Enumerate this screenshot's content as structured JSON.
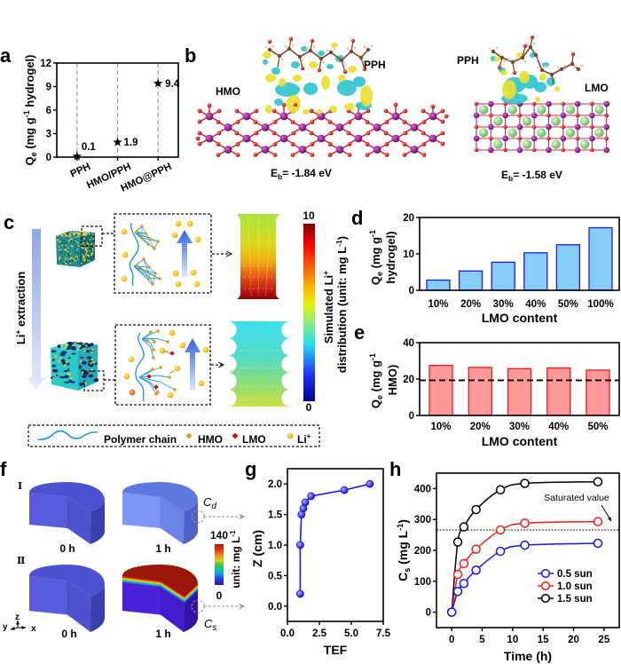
{
  "figure": {
    "panel_labels": {
      "a": "a",
      "b": "b",
      "c": "c",
      "d": "d",
      "e": "e",
      "f": "f",
      "g": "g",
      "h": "h"
    },
    "panel_b": {
      "hmo": {
        "substrate_label": "HMO",
        "molecule_label": "PPH",
        "eb_symbol": "E",
        "eb_subscript": "b",
        "eb_value": "= -1.84 eV"
      },
      "lmo": {
        "substrate_label": "LMO",
        "molecule_label": "PPH",
        "eb_symbol": "E",
        "eb_subscript": "b",
        "eb_value": "= -1.58 eV"
      },
      "atom_colors": {
        "mn": "#8e1a8e",
        "o": "#e31c1c",
        "li": "#8fd17f",
        "c": "#7b4a25",
        "h": "#f4cccc"
      },
      "density_colors": {
        "accumulation": "#e8e030",
        "depletion": "#2fc6cf"
      }
    },
    "panel_c": {
      "process_label": {
        "main": "Li",
        "sup": "+",
        "rest": " extraction"
      },
      "colorbar": {
        "max_label": "10",
        "min_label": "0",
        "title_line1": "Simulated Li",
        "title_line1_sup": "+",
        "title_line2": "distribution (unit: mg L",
        "title_line2_sup": "-1",
        "title_line2_end": ")",
        "colormap": "jet"
      },
      "legend": {
        "polymer": {
          "label": "Polymer chain",
          "color": "#1e9be6"
        },
        "hmo": {
          "label": "HMO",
          "color": "#e0a020"
        },
        "lmo": {
          "label": "LMO",
          "color": "#c01818"
        },
        "li": {
          "label": "Li",
          "sup": "+",
          "color": "#f6c416"
        }
      }
    },
    "panel_f": {
      "rows": [
        {
          "label": "Ⅰ",
          "times": [
            "0 h",
            "1 h"
          ],
          "probe": {
            "main": "C",
            "sub": "d"
          }
        },
        {
          "label": "Ⅱ",
          "times": [
            "0 h",
            "1 h"
          ],
          "probe": {
            "main": "C",
            "sub": "s"
          }
        }
      ],
      "colorbar": {
        "max_label": "140",
        "min_label": "0",
        "unit": "unit: mg L",
        "unit_sup": "-1",
        "colormap": "rainbow"
      },
      "axes_triad": {
        "z": "z",
        "y": "y",
        "x": "x"
      }
    }
  },
  "chart_data": [
    {
      "panel": "a",
      "type": "scatter",
      "categories": [
        "PPH",
        "HMO/PPH",
        "HMO@PPH"
      ],
      "values": [
        0.1,
        1.9,
        9.4
      ],
      "data_labels": [
        "0.1",
        "1.9",
        "9.4"
      ],
      "marker": "star",
      "ylim": [
        0,
        12
      ],
      "yticks": [
        0,
        3,
        6,
        9,
        12
      ],
      "ytick_labels": [
        "0",
        "3",
        "6",
        "9",
        "12"
      ],
      "xlabel": "",
      "ylabel": {
        "main": "Q",
        "sub": "e",
        "mid": " (mg g",
        "sup": "-1",
        "end": " hydrogel)"
      },
      "grid": "vertical dashed guides at categories"
    },
    {
      "panel": "d",
      "type": "bar",
      "categories": [
        "10%",
        "20%",
        "30%",
        "40%",
        "50%",
        "100%"
      ],
      "values": [
        2.8,
        5.3,
        7.7,
        10.3,
        12.5,
        17.2
      ],
      "ylim": [
        0,
        20
      ],
      "yticks": [
        0,
        10,
        20
      ],
      "ytick_labels": [
        "0",
        "10",
        "20"
      ],
      "xlabel": "LMO content",
      "ylabel": {
        "main": "Q",
        "sub": "e",
        "mid": " (mg g",
        "sup": "-1",
        "line2": "hydrogel)"
      },
      "bar_fill": "#87cdf9",
      "bar_edge": "#1c1cf0"
    },
    {
      "panel": "e",
      "type": "bar",
      "categories": [
        "10%",
        "20%",
        "30%",
        "40%",
        "50%"
      ],
      "values": [
        27.5,
        26.4,
        25.7,
        26.1,
        24.9
      ],
      "ylim": [
        0,
        40
      ],
      "yticks": [
        0,
        20,
        40
      ],
      "ytick_labels": [
        "0",
        "20",
        "40"
      ],
      "reference_line": 19.3,
      "xlabel": "LMO content",
      "ylabel": {
        "main": "Q",
        "sub": "e",
        "mid": " (mg g",
        "sup": "-1",
        "line2": "HMO)"
      },
      "bar_fill": "#ff9a9a",
      "bar_edge": "#f01818"
    },
    {
      "panel": "g",
      "type": "line",
      "x": [
        1.0,
        1.0,
        1.1,
        1.25,
        1.4,
        1.85,
        4.45,
        6.45
      ],
      "y": [
        0.2,
        1.0,
        1.5,
        1.6,
        1.7,
        1.8,
        1.9,
        2.0
      ],
      "xlim": [
        0,
        7.5
      ],
      "ylim": [
        -0.25,
        2.25
      ],
      "xticks": [
        0,
        2.5,
        5,
        7.5
      ],
      "xtick_labels": [
        "0.0",
        "2.5",
        "5.0",
        "7.5"
      ],
      "yticks": [
        0,
        0.5,
        1,
        1.5,
        2
      ],
      "ytick_labels": [
        "0.0",
        "0.5",
        "1.0",
        "1.5",
        "2.0"
      ],
      "xlabel": "TEF",
      "ylabel": "Z (cm)",
      "color": "#1616ee"
    },
    {
      "panel": "h",
      "type": "line",
      "x": [
        0,
        1,
        2,
        4,
        8,
        12,
        24
      ],
      "series": [
        {
          "name": "0.5 sun",
          "color": "#1414ff",
          "values": [
            0,
            67,
            93,
            136,
            197,
            217,
            223
          ]
        },
        {
          "name": "1.0 sun",
          "color": "#ff1a1a",
          "values": [
            0,
            122,
            157,
            204,
            266,
            288,
            293
          ]
        },
        {
          "name": "1.5 sun",
          "color": "#000000",
          "values": [
            0,
            227,
            276,
            332,
            396,
            417,
            422
          ]
        }
      ],
      "xlim": [
        -2.5,
        27.5
      ],
      "ylim": [
        -50,
        450
      ],
      "xticks": [
        0,
        5,
        10,
        15,
        20,
        25
      ],
      "xtick_labels": [
        "0",
        "5",
        "10",
        "15",
        "20",
        "25"
      ],
      "yticks": [
        0,
        100,
        200,
        300,
        400
      ],
      "ytick_labels": [
        "0",
        "100",
        "200",
        "300",
        "400"
      ],
      "xlabel": "Time (h)",
      "ylabel": {
        "main": "C",
        "sub": "s",
        "mid": " (mg L",
        "sup": "-1",
        "end": ")"
      },
      "reference_line": {
        "y": 266,
        "label": "Saturated value",
        "style": "dotted"
      },
      "legend_position": "center-right"
    }
  ]
}
